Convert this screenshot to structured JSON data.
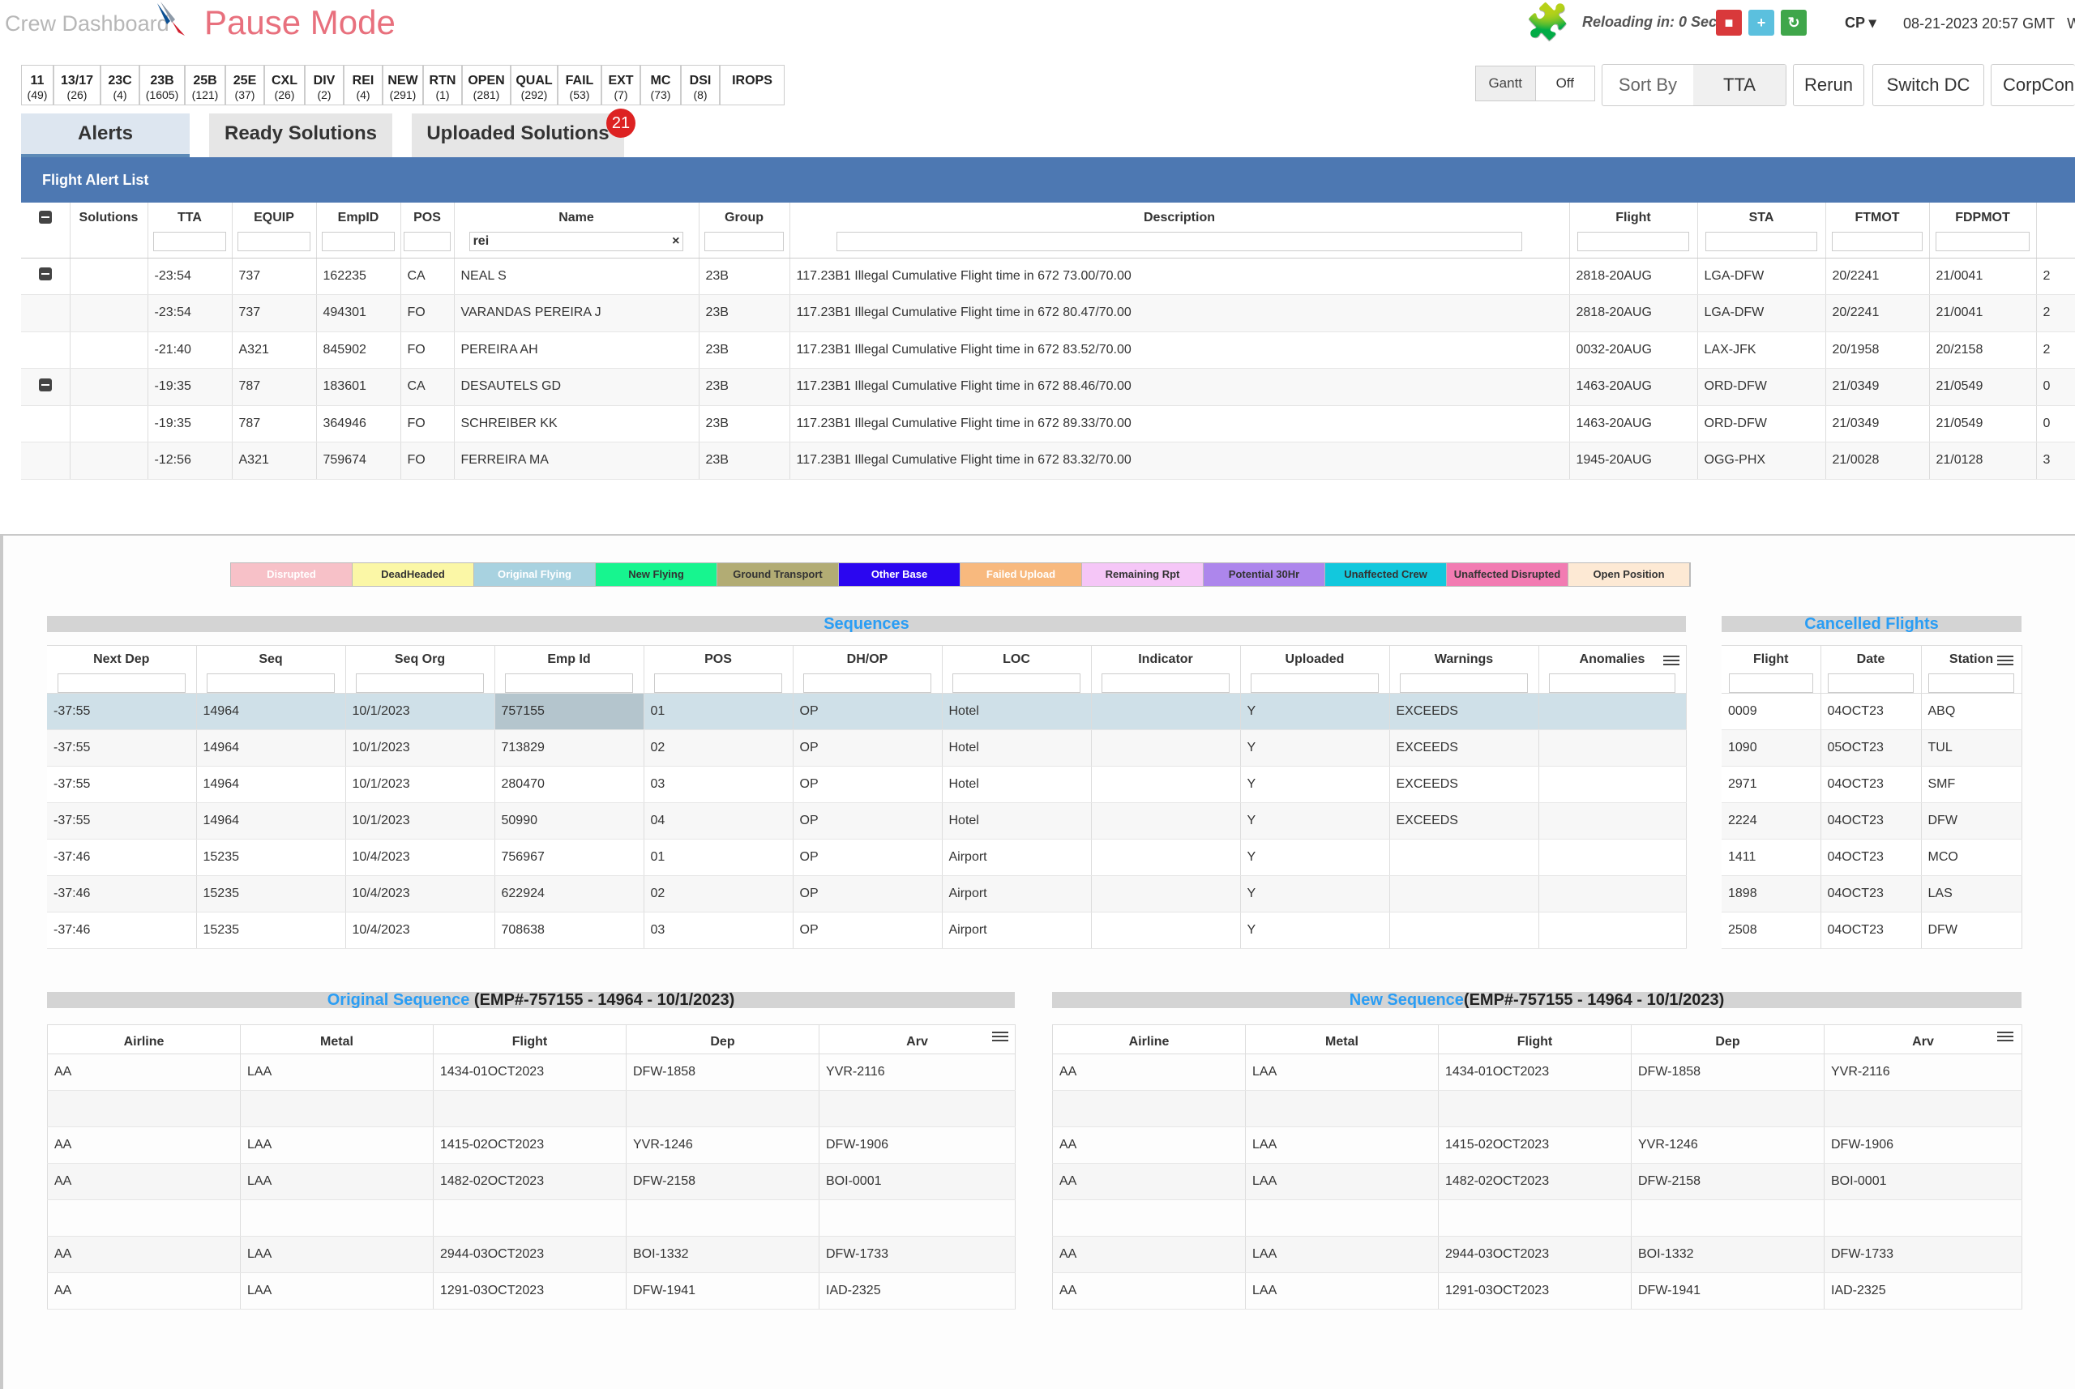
{
  "header": {
    "app_name": "Crew Dashboard",
    "mode": "Pause Mode",
    "reload_text": "Reloading in: 0 Sec.",
    "user_menu": "CP ▾",
    "datetime": "08-21-2023 20:57 GMT",
    "datetime_suffix": "W"
  },
  "filters": [
    {
      "label": "11",
      "count": "(49)"
    },
    {
      "label": "13/17",
      "count": "(26)"
    },
    {
      "label": "23C",
      "count": "(4)"
    },
    {
      "label": "23B",
      "count": "(1605)"
    },
    {
      "label": "25B",
      "count": "(121)"
    },
    {
      "label": "25E",
      "count": "(37)"
    },
    {
      "label": "CXL",
      "count": "(26)"
    },
    {
      "label": "DIV",
      "count": "(2)"
    },
    {
      "label": "REI",
      "count": "(4)"
    },
    {
      "label": "NEW",
      "count": "(291)"
    },
    {
      "label": "RTN",
      "count": "(1)"
    },
    {
      "label": "OPEN",
      "count": "(281)"
    },
    {
      "label": "QUAL",
      "count": "(292)"
    },
    {
      "label": "FAIL",
      "count": "(53)"
    },
    {
      "label": "EXT",
      "count": "(7)"
    },
    {
      "label": "MC",
      "count": "(73)"
    },
    {
      "label": "DSI",
      "count": "(8)"
    },
    {
      "label": "IROPS",
      "count": ""
    }
  ],
  "toolbar": {
    "gantt_label": "Gantt",
    "gantt_value": "Off",
    "sort_label": "Sort By",
    "sort_value": "TTA",
    "rerun": "Rerun",
    "switch_dc": "Switch DC",
    "corp": "CorpConn"
  },
  "tabs": {
    "alerts": "Alerts",
    "ready": "Ready Solutions",
    "uploaded": "Uploaded Solutions",
    "uploaded_badge": "21"
  },
  "alert_list": {
    "title": "Flight Alert List",
    "name_filter": "rei",
    "columns": [
      "Solutions",
      "TTA",
      "EQUIP",
      "EmpID",
      "POS",
      "Name",
      "Group",
      "Description",
      "Flight",
      "STA",
      "FTMOT",
      "FDPMOT"
    ],
    "rows": [
      {
        "tta": "-23:54",
        "equip": "737",
        "emp": "162235",
        "pos": "CA",
        "name": "NEAL S",
        "group": "23B",
        "desc": "117.23B1 Illegal Cumulative Flight time in 672 73.00/70.00",
        "flight": "2818-20AUG",
        "sta": "LGA-DFW",
        "ftmot": "20/2241",
        "fdpmot": "21/0041",
        "extra": "2"
      },
      {
        "tta": "-23:54",
        "equip": "737",
        "emp": "494301",
        "pos": "FO",
        "name": "VARANDAS PEREIRA J",
        "group": "23B",
        "desc": "117.23B1 Illegal Cumulative Flight time in 672 80.47/70.00",
        "flight": "2818-20AUG",
        "sta": "LGA-DFW",
        "ftmot": "20/2241",
        "fdpmot": "21/0041",
        "extra": "2"
      },
      {
        "tta": "-21:40",
        "equip": "A321",
        "emp": "845902",
        "pos": "FO",
        "name": "PEREIRA AH",
        "group": "23B",
        "desc": "117.23B1 Illegal Cumulative Flight time in 672 83.52/70.00",
        "flight": "0032-20AUG",
        "sta": "LAX-JFK",
        "ftmot": "20/1958",
        "fdpmot": "20/2158",
        "extra": "2"
      },
      {
        "tta": "-19:35",
        "equip": "787",
        "emp": "183601",
        "pos": "CA",
        "name": "DESAUTELS GD",
        "group": "23B",
        "desc": "117.23B1 Illegal Cumulative Flight time in 672 88.46/70.00",
        "flight": "1463-20AUG",
        "sta": "ORD-DFW",
        "ftmot": "21/0349",
        "fdpmot": "21/0549",
        "extra": "0"
      },
      {
        "tta": "-19:35",
        "equip": "787",
        "emp": "364946",
        "pos": "FO",
        "name": "SCHREIBER KK",
        "group": "23B",
        "desc": "117.23B1 Illegal Cumulative Flight time in 672 89.33/70.00",
        "flight": "1463-20AUG",
        "sta": "ORD-DFW",
        "ftmot": "21/0349",
        "fdpmot": "21/0549",
        "extra": "0"
      },
      {
        "tta": "-12:56",
        "equip": "A321",
        "emp": "759674",
        "pos": "FO",
        "name": "FERREIRA MA",
        "group": "23B",
        "desc": "117.23B1 Illegal Cumulative Flight time in 672 83.32/70.00",
        "flight": "1945-20AUG",
        "sta": "OGG-PHX",
        "ftmot": "21/0028",
        "fdpmot": "21/0128",
        "extra": "3"
      }
    ]
  },
  "legend": [
    {
      "label": "Disrupted",
      "bg": "#f7c1c8",
      "fg": "#ffffff"
    },
    {
      "label": "DeadHeaded",
      "bg": "#fbf7a6",
      "fg": "#333333"
    },
    {
      "label": "Original Flying",
      "bg": "#a8d2e0",
      "fg": "#ffffff"
    },
    {
      "label": "New Flying",
      "bg": "#17f58f",
      "fg": "#333333"
    },
    {
      "label": "Ground Transport",
      "bg": "#b2ac74",
      "fg": "#333333"
    },
    {
      "label": "Other Base",
      "bg": "#2b06f0",
      "fg": "#ffffff"
    },
    {
      "label": "Failed Upload",
      "bg": "#f8b97e",
      "fg": "#ffffff"
    },
    {
      "label": "Remaining Rpt",
      "bg": "#f5c6f7",
      "fg": "#333333"
    },
    {
      "label": "Potential 30Hr",
      "bg": "#ad86ec",
      "fg": "#333333"
    },
    {
      "label": "Unaffected Crew",
      "bg": "#12c8dd",
      "fg": "#333333"
    },
    {
      "label": "Unaffected Disrupted",
      "bg": "#f27bb2",
      "fg": "#333333"
    },
    {
      "label": "Open Position",
      "bg": "#fde9d4",
      "fg": "#333333"
    }
  ],
  "sequences": {
    "title": "Sequences",
    "columns": [
      "Next Dep",
      "Seq",
      "Seq Org",
      "Emp Id",
      "POS",
      "DH/OP",
      "LOC",
      "Indicator",
      "Uploaded",
      "Warnings",
      "Anomalies"
    ],
    "rows": [
      [
        "-37:55",
        "14964",
        "10/1/2023",
        "757155",
        "01",
        "OP",
        "Hotel",
        "",
        "Y",
        "EXCEEDS",
        ""
      ],
      [
        "-37:55",
        "14964",
        "10/1/2023",
        "713829",
        "02",
        "OP",
        "Hotel",
        "",
        "Y",
        "EXCEEDS",
        ""
      ],
      [
        "-37:55",
        "14964",
        "10/1/2023",
        "280470",
        "03",
        "OP",
        "Hotel",
        "",
        "Y",
        "EXCEEDS",
        ""
      ],
      [
        "-37:55",
        "14964",
        "10/1/2023",
        "50990",
        "04",
        "OP",
        "Hotel",
        "",
        "Y",
        "EXCEEDS",
        ""
      ],
      [
        "-37:46",
        "15235",
        "10/4/2023",
        "756967",
        "01",
        "OP",
        "Airport",
        "",
        "Y",
        "",
        ""
      ],
      [
        "-37:46",
        "15235",
        "10/4/2023",
        "622924",
        "02",
        "OP",
        "Airport",
        "",
        "Y",
        "",
        ""
      ],
      [
        "-37:46",
        "15235",
        "10/4/2023",
        "708638",
        "03",
        "OP",
        "Airport",
        "",
        "Y",
        "",
        ""
      ]
    ]
  },
  "cancelled": {
    "title": "Cancelled Flights",
    "columns": [
      "Flight",
      "Date",
      "Station"
    ],
    "rows": [
      [
        "0009",
        "04OCT23",
        "ABQ"
      ],
      [
        "1090",
        "05OCT23",
        "TUL"
      ],
      [
        "2971",
        "04OCT23",
        "SMF"
      ],
      [
        "2224",
        "04OCT23",
        "DFW"
      ],
      [
        "1411",
        "04OCT23",
        "MCO"
      ],
      [
        "1898",
        "04OCT23",
        "LAS"
      ],
      [
        "2508",
        "04OCT23",
        "DFW"
      ]
    ]
  },
  "original_sequence": {
    "title": "Original Sequence",
    "subtitle": " (EMP#-757155 - 14964 - 10/1/2023)",
    "columns": [
      "Airline",
      "Metal",
      "Flight",
      "Dep",
      "Arv"
    ],
    "rows": [
      [
        "AA",
        "LAA",
        "1434-01OCT2023",
        "DFW-1858",
        "YVR-2116"
      ],
      [
        "",
        "",
        "",
        "",
        ""
      ],
      [
        "AA",
        "LAA",
        "1415-02OCT2023",
        "YVR-1246",
        "DFW-1906"
      ],
      [
        "AA",
        "LAA",
        "1482-02OCT2023",
        "DFW-2158",
        "BOI-0001"
      ],
      [
        "",
        "",
        "",
        "",
        ""
      ],
      [
        "AA",
        "LAA",
        "2944-03OCT2023",
        "BOI-1332",
        "DFW-1733"
      ],
      [
        "AA",
        "LAA",
        "1291-03OCT2023",
        "DFW-1941",
        "IAD-2325"
      ]
    ]
  },
  "new_sequence": {
    "title": "New Sequence",
    "subtitle": "(EMP#-757155 - 14964 - 10/1/2023)",
    "columns": [
      "Airline",
      "Metal",
      "Flight",
      "Dep",
      "Arv"
    ],
    "rows": [
      [
        "AA",
        "LAA",
        "1434-01OCT2023",
        "DFW-1858",
        "YVR-2116"
      ],
      [
        "",
        "",
        "",
        "",
        ""
      ],
      [
        "AA",
        "LAA",
        "1415-02OCT2023",
        "YVR-1246",
        "DFW-1906"
      ],
      [
        "AA",
        "LAA",
        "1482-02OCT2023",
        "DFW-2158",
        "BOI-0001"
      ],
      [
        "",
        "",
        "",
        "",
        ""
      ],
      [
        "AA",
        "LAA",
        "2944-03OCT2023",
        "BOI-1332",
        "DFW-1733"
      ],
      [
        "AA",
        "LAA",
        "1291-03OCT2023",
        "DFW-1941",
        "IAD-2325"
      ]
    ]
  },
  "colors": {
    "accent": "#4d78b2",
    "title_link": "#2a9df4",
    "pause": "#e8707d",
    "badge": "#dd2222"
  }
}
